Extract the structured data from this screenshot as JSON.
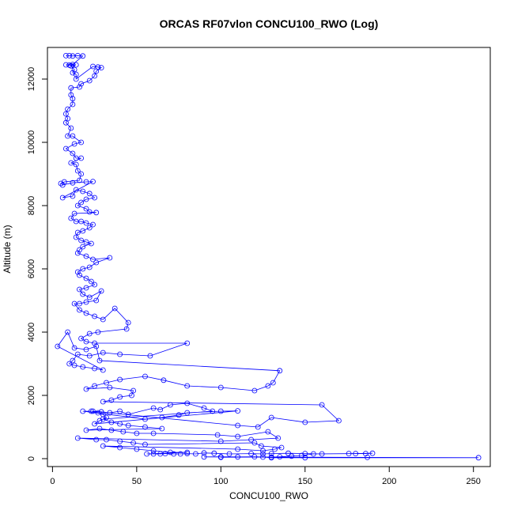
{
  "chart_data": {
    "type": "scatter",
    "title": "ORCAS RF07vlon CONCU100_RWO (Log)",
    "xlabel": "CONCU100_RWO",
    "ylabel": "Altitude (m)",
    "xlim": [
      -3,
      260
    ],
    "ylim": [
      -250,
      13000
    ],
    "x_ticks": [
      0,
      50,
      100,
      150,
      200,
      250
    ],
    "y_ticks": [
      0,
      2000,
      4000,
      6000,
      8000,
      10000,
      12000
    ],
    "grid": false,
    "color": "#0000ff",
    "series": [
      {
        "style": "line-with-points",
        "points": [
          [
            8,
            12740
          ],
          [
            10,
            12740
          ],
          [
            12,
            12730
          ],
          [
            15,
            12740
          ],
          [
            18,
            12730
          ],
          [
            12,
            12460
          ],
          [
            8,
            12450
          ],
          [
            10,
            12440
          ],
          [
            14,
            12450
          ],
          [
            11,
            12420
          ],
          [
            13,
            12300
          ],
          [
            12,
            12200
          ],
          [
            14,
            12150
          ],
          [
            14,
            12000
          ],
          [
            24,
            12400
          ],
          [
            27,
            12380
          ],
          [
            29,
            12360
          ],
          [
            26,
            12250
          ],
          [
            25,
            12100
          ],
          [
            22,
            11950
          ],
          [
            17,
            11850
          ],
          [
            16,
            11750
          ],
          [
            11,
            11720
          ],
          [
            11,
            11500
          ],
          [
            12,
            11380
          ],
          [
            12,
            11200
          ],
          [
            9,
            11050
          ],
          [
            8,
            10900
          ],
          [
            9,
            10750
          ],
          [
            8,
            10620
          ],
          [
            11,
            10450
          ],
          [
            9,
            10200
          ],
          [
            12,
            10200
          ],
          [
            17,
            10000
          ],
          [
            13,
            9950
          ],
          [
            8,
            9800
          ],
          [
            12,
            9650
          ],
          [
            14,
            9500
          ],
          [
            17,
            9500
          ],
          [
            11,
            9350
          ],
          [
            14,
            9300
          ],
          [
            15,
            9100
          ],
          [
            17,
            9000
          ],
          [
            16,
            8800
          ],
          [
            7,
            8750
          ],
          [
            5,
            8700
          ],
          [
            6,
            8650
          ],
          [
            12,
            8720
          ],
          [
            20,
            8750
          ],
          [
            24,
            8760
          ],
          [
            6,
            8250
          ],
          [
            12,
            8300
          ],
          [
            14,
            8500
          ],
          [
            18,
            8450
          ],
          [
            22,
            8380
          ],
          [
            25,
            8250
          ],
          [
            20,
            8200
          ],
          [
            17,
            8100
          ],
          [
            15,
            8000
          ],
          [
            20,
            7900
          ],
          [
            22,
            7800
          ],
          [
            26,
            7780
          ],
          [
            13,
            7750
          ],
          [
            11,
            7600
          ],
          [
            14,
            7500
          ],
          [
            17,
            7500
          ],
          [
            20,
            7450
          ],
          [
            24,
            7400
          ],
          [
            22,
            7300
          ],
          [
            18,
            7200
          ],
          [
            15,
            7150
          ],
          [
            14,
            7000
          ],
          [
            17,
            6900
          ],
          [
            20,
            6850
          ],
          [
            23,
            6800
          ],
          [
            18,
            6700
          ],
          [
            16,
            6600
          ],
          [
            15,
            6500
          ],
          [
            20,
            6400
          ],
          [
            24,
            6300
          ],
          [
            34,
            6350
          ],
          [
            26,
            6200
          ],
          [
            22,
            6050
          ],
          [
            18,
            6000
          ],
          [
            15,
            5900
          ],
          [
            16,
            5800
          ],
          [
            20,
            5700
          ],
          [
            23,
            5600
          ],
          [
            25,
            5500
          ],
          [
            20,
            5400
          ],
          [
            16,
            5350
          ],
          [
            18,
            5200
          ],
          [
            22,
            5100
          ],
          [
            29,
            5300
          ],
          [
            26,
            5000
          ],
          [
            20,
            4950
          ],
          [
            16,
            4900
          ],
          [
            13,
            4900
          ],
          [
            16,
            4700
          ],
          [
            20,
            4600
          ],
          [
            25,
            4500
          ],
          [
            30,
            4400
          ],
          [
            37,
            4750
          ],
          [
            45,
            4300
          ],
          [
            44,
            4100
          ],
          [
            27,
            4000
          ],
          [
            22,
            3950
          ],
          [
            17,
            3800
          ],
          [
            20,
            3700
          ],
          [
            25,
            3650
          ],
          [
            80,
            3650
          ],
          [
            58,
            3250
          ],
          [
            40,
            3300
          ],
          [
            30,
            3350
          ],
          [
            22,
            3250
          ],
          [
            15,
            3300
          ],
          [
            12,
            3100
          ],
          [
            10,
            3000
          ],
          [
            13,
            2950
          ],
          [
            18,
            2900
          ],
          [
            25,
            2850
          ],
          [
            30,
            2800
          ],
          [
            3,
            3550
          ],
          [
            9,
            4000
          ],
          [
            13,
            3500
          ],
          [
            20,
            3450
          ],
          [
            26,
            3550
          ],
          [
            28,
            3100
          ],
          [
            135,
            2780
          ],
          [
            131,
            2400
          ],
          [
            128,
            2300
          ],
          [
            120,
            2150
          ],
          [
            100,
            2250
          ],
          [
            80,
            2300
          ],
          [
            66,
            2480
          ],
          [
            55,
            2600
          ],
          [
            40,
            2500
          ],
          [
            32,
            2400
          ],
          [
            25,
            2300
          ],
          [
            20,
            2200
          ],
          [
            34,
            2250
          ],
          [
            48,
            2150
          ],
          [
            47,
            2000
          ],
          [
            40,
            1950
          ],
          [
            35,
            1850
          ],
          [
            30,
            1800
          ],
          [
            160,
            1700
          ],
          [
            170,
            1200
          ],
          [
            150,
            1150
          ],
          [
            130,
            1300
          ],
          [
            122,
            1000
          ],
          [
            110,
            1050
          ],
          [
            23,
            1500
          ],
          [
            27,
            1450
          ],
          [
            30,
            1400
          ],
          [
            32,
            1300
          ],
          [
            28,
            1200
          ],
          [
            25,
            1100
          ],
          [
            110,
            1510
          ],
          [
            100,
            1500
          ],
          [
            80,
            1450
          ],
          [
            75,
            1380
          ],
          [
            65,
            1300
          ],
          [
            55,
            1250
          ],
          [
            18,
            1500
          ],
          [
            24,
            1500
          ],
          [
            29,
            1480
          ],
          [
            34,
            1450
          ],
          [
            40,
            1500
          ],
          [
            45,
            1400
          ],
          [
            60,
            1600
          ],
          [
            64,
            1550
          ],
          [
            70,
            1700
          ],
          [
            80,
            1750
          ],
          [
            90,
            1600
          ],
          [
            95,
            1500
          ],
          [
            30,
            1250
          ],
          [
            35,
            1150
          ],
          [
            40,
            1100
          ],
          [
            45,
            1050
          ],
          [
            55,
            1000
          ],
          [
            65,
            950
          ],
          [
            20,
            900
          ],
          [
            28,
            950
          ],
          [
            35,
            900
          ],
          [
            42,
            850
          ],
          [
            50,
            800
          ],
          [
            60,
            800
          ],
          [
            98,
            750
          ],
          [
            110,
            700
          ],
          [
            128,
            850
          ],
          [
            134,
            650
          ],
          [
            118,
            600
          ],
          [
            100,
            550
          ],
          [
            15,
            650
          ],
          [
            26,
            600
          ],
          [
            32,
            600
          ],
          [
            40,
            550
          ],
          [
            48,
            500
          ],
          [
            55,
            450
          ],
          [
            120,
            500
          ],
          [
            124,
            400
          ],
          [
            136,
            350
          ],
          [
            132,
            300
          ],
          [
            125,
            250
          ],
          [
            110,
            300
          ],
          [
            30,
            400
          ],
          [
            40,
            350
          ],
          [
            50,
            300
          ],
          [
            60,
            250
          ],
          [
            70,
            200
          ],
          [
            80,
            200
          ],
          [
            56,
            150
          ],
          [
            60,
            150
          ],
          [
            64,
            150
          ],
          [
            67,
            160
          ],
          [
            72,
            150
          ],
          [
            76,
            150
          ],
          [
            80,
            160
          ],
          [
            85,
            150
          ],
          [
            90,
            180
          ],
          [
            96,
            170
          ],
          [
            105,
            150
          ],
          [
            118,
            160
          ],
          [
            125,
            150
          ],
          [
            130,
            160
          ],
          [
            140,
            170
          ],
          [
            150,
            160
          ],
          [
            160,
            150
          ],
          [
            180,
            160
          ],
          [
            186,
            160
          ],
          [
            190,
            170
          ],
          [
            176,
            160
          ],
          [
            155,
            150
          ],
          [
            148,
            100
          ],
          [
            142,
            80
          ],
          [
            135,
            60
          ],
          [
            130,
            50
          ],
          [
            120,
            60
          ],
          [
            110,
            55
          ],
          [
            100,
            60
          ],
          [
            90,
            55
          ],
          [
            187,
            40
          ],
          [
            253,
            30
          ],
          [
            150,
            30
          ],
          [
            130,
            30
          ],
          [
            125,
            50
          ],
          [
            100,
            40
          ]
        ]
      }
    ]
  }
}
